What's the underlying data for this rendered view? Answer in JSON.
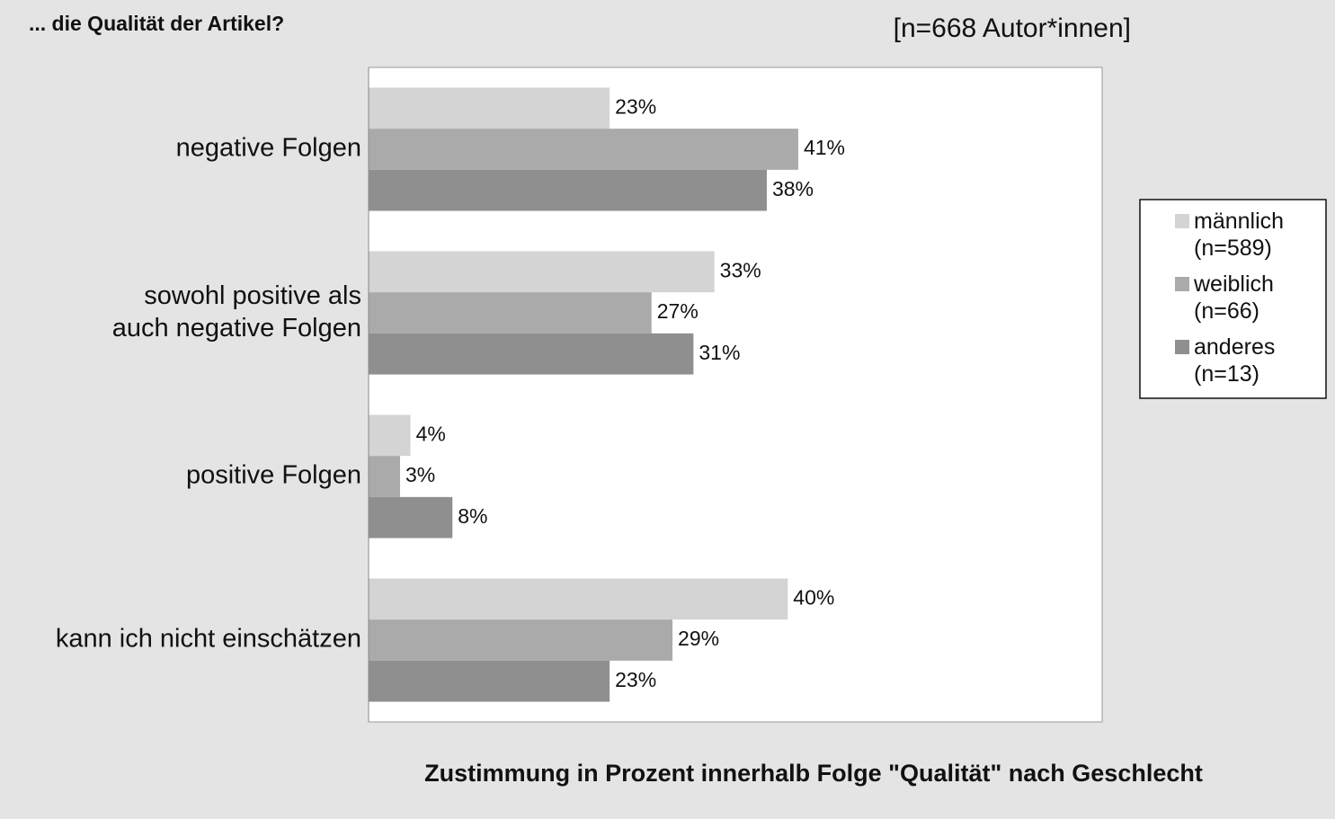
{
  "chart_data": {
    "type": "barh",
    "title": "... die Qualität der Artikel?",
    "subtitle": "[n=668 Autor*innen]",
    "x_label": "Zustimmung in Prozent innerhalb Folge \"Qualität\" nach Geschlecht",
    "categories": [
      "negative Folgen",
      "sowohl positive als\nauch negative Folgen",
      "positive Folgen",
      "kann ich nicht einschätzen"
    ],
    "series": [
      {
        "name": "männlich\n(n=589)",
        "color": "#d4d4d4",
        "values": [
          23,
          33,
          4,
          40
        ],
        "value_labels": [
          "23%",
          "33%",
          "4%",
          "40%"
        ]
      },
      {
        "name": "weiblich\n(n=66)",
        "color": "#aaaaaa",
        "values": [
          41,
          27,
          3,
          29
        ],
        "value_labels": [
          "41%",
          "27%",
          "3%",
          "29%"
        ]
      },
      {
        "name": "anderes\n(n=13)",
        "color": "#8f8f8f",
        "values": [
          38,
          31,
          8,
          23
        ],
        "value_labels": [
          "38%",
          "31%",
          "8%",
          "23%"
        ]
      }
    ],
    "xlim": [
      0,
      70
    ],
    "legend": "right"
  }
}
